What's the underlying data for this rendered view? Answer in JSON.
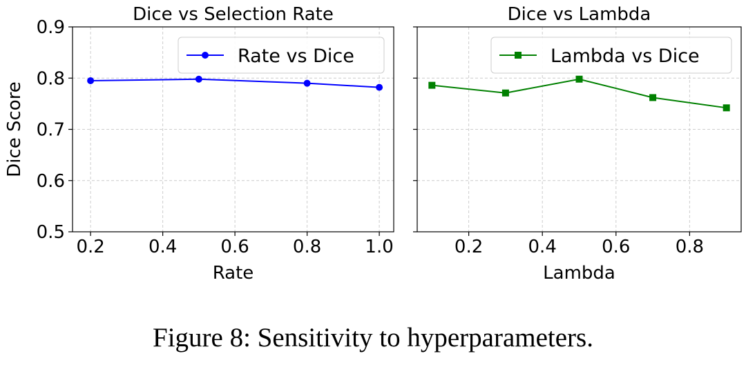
{
  "chart_data": [
    {
      "type": "line",
      "title": "Dice vs Selection Rate",
      "xlabel": "Rate",
      "ylabel": "Dice Score",
      "x": [
        0.2,
        0.5,
        0.8,
        1.0
      ],
      "series": [
        {
          "name": "Rate vs Dice",
          "values": [
            0.795,
            0.798,
            0.79,
            0.782
          ],
          "color": "#0000ff",
          "marker": "circle"
        }
      ],
      "xlim": [
        0.15,
        1.04
      ],
      "ylim": [
        0.5,
        0.9
      ],
      "xticks": [
        0.2,
        0.4,
        0.6,
        0.8,
        1.0
      ],
      "xtick_labels": [
        "0.2",
        "0.4",
        "0.6",
        "0.8",
        "1.0"
      ],
      "yticks": [
        0.5,
        0.6,
        0.7,
        0.8,
        0.9
      ],
      "ytick_labels": [
        "0.5",
        "0.6",
        "0.7",
        "0.8",
        "0.9"
      ],
      "grid": true,
      "legend_position": "top-right"
    },
    {
      "type": "line",
      "title": "Dice vs Lambda",
      "xlabel": "Lambda",
      "ylabel": "",
      "x": [
        0.1,
        0.3,
        0.5,
        0.7,
        0.9
      ],
      "series": [
        {
          "name": "Lambda vs Dice",
          "values": [
            0.786,
            0.771,
            0.798,
            0.762,
            0.742
          ],
          "color": "#008000",
          "marker": "square"
        }
      ],
      "xlim": [
        0.06,
        0.94
      ],
      "ylim": [
        0.5,
        0.9
      ],
      "xticks": [
        0.2,
        0.4,
        0.6,
        0.8
      ],
      "xtick_labels": [
        "0.2",
        "0.4",
        "0.6",
        "0.8"
      ],
      "yticks": [
        0.5,
        0.6,
        0.7,
        0.8,
        0.9
      ],
      "ytick_labels": [],
      "grid": true,
      "legend_position": "top-right"
    }
  ],
  "caption": "Figure 8: Sensitivity to hyperparameters."
}
